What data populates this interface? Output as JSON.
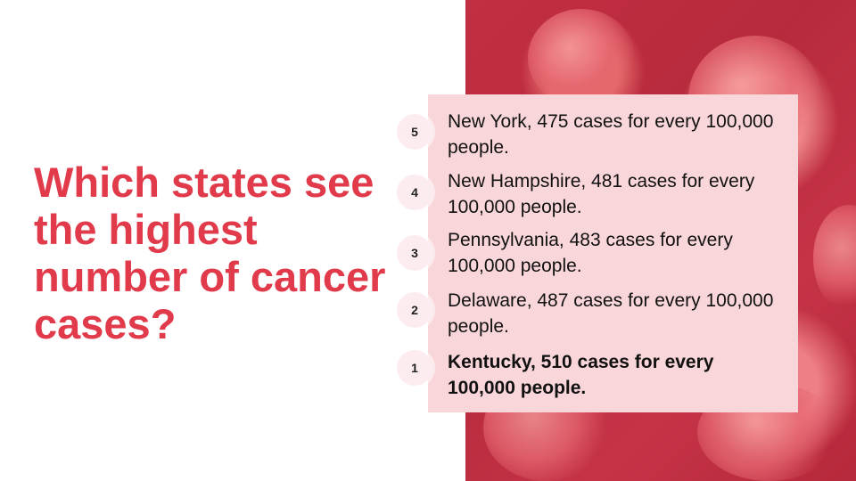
{
  "slide": {
    "title": "Which states see the highest number of cancer cases?",
    "background_image": "cancer-cells-image",
    "colors": {
      "title": "#e03a4b",
      "panel": "#f9d6da",
      "image_tint": "#c22e42"
    }
  },
  "ranking": [
    {
      "rank": "5",
      "text": "New York, 475 cases for every 100,000 people."
    },
    {
      "rank": "4",
      "text": "New Hampshire, 481 cases for every 100,000 people."
    },
    {
      "rank": "3",
      "text": "Pennsylvania, 483 cases for every 100,000 people."
    },
    {
      "rank": "2",
      "text": "Delaware, 487 cases for every 100,000 people."
    },
    {
      "rank": "1",
      "text": "Kentucky, 510 cases for every 100,000 people."
    }
  ]
}
